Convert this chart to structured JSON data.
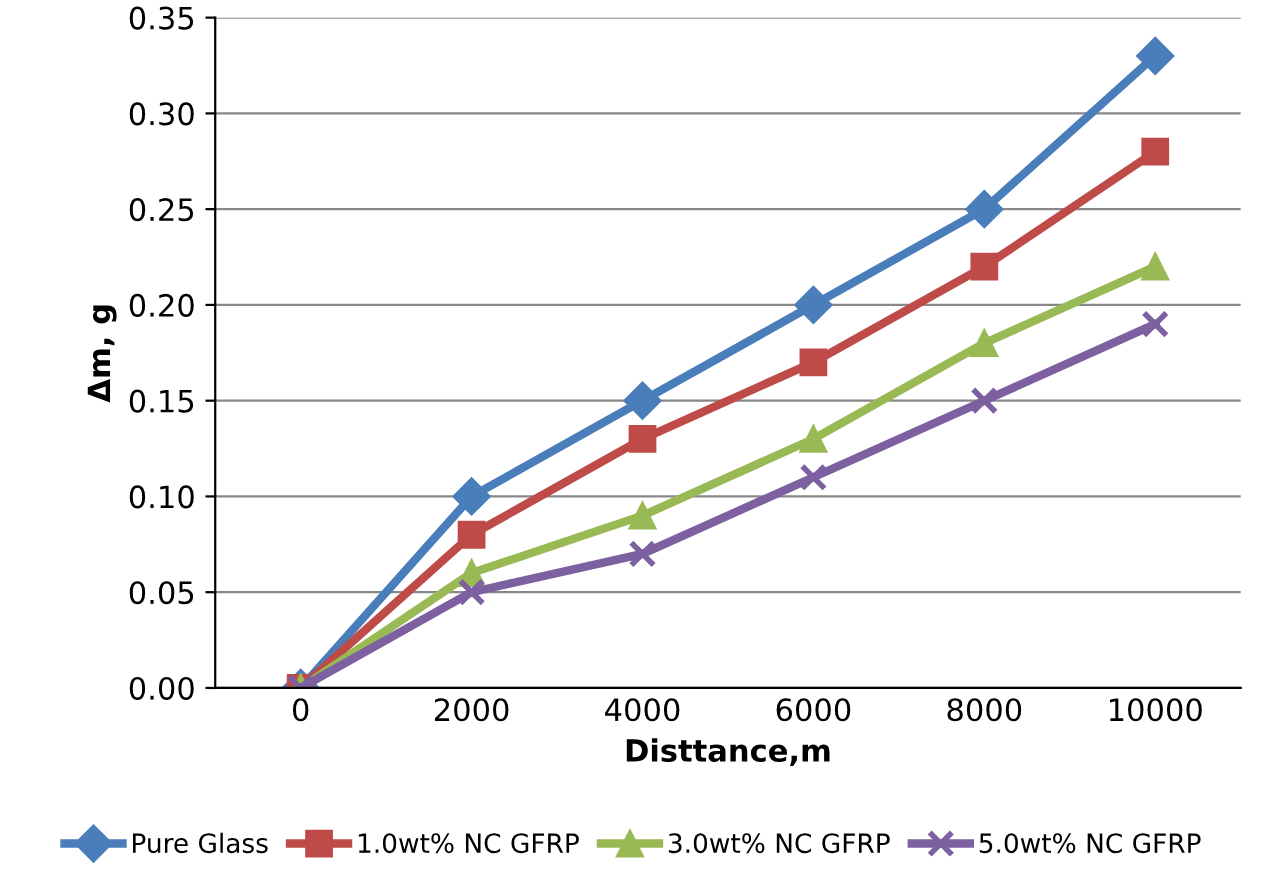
{
  "chart_data": {
    "type": "line",
    "xlabel": "Disttance,m",
    "ylabel": "Δm, g",
    "categories": [
      "0",
      "2000",
      "4000",
      "6000",
      "8000",
      "10000"
    ],
    "series": [
      {
        "name": "Pure Glass",
        "color": "#4a7ebb",
        "marker": "diamond",
        "values": [
          0,
          0.1,
          0.15,
          0.2,
          0.25,
          0.33
        ]
      },
      {
        "name": "1.0wt% NC GFRP",
        "color": "#be4b48",
        "marker": "square",
        "values": [
          0,
          0.08,
          0.13,
          0.17,
          0.22,
          0.28
        ]
      },
      {
        "name": "3.0wt% NC GFRP",
        "color": "#98b954",
        "marker": "triangle",
        "values": [
          0,
          0.06,
          0.09,
          0.13,
          0.18,
          0.22
        ]
      },
      {
        "name": "5.0wt% NC GFRP",
        "color": "#7d60a0",
        "marker": "cross",
        "values": [
          0,
          0.05,
          0.07,
          0.11,
          0.15,
          0.19
        ]
      }
    ],
    "ylim": [
      0,
      0.35
    ],
    "yticks": [
      {
        "value": 0,
        "label": "0.00"
      },
      {
        "value": 0.05,
        "label": "0.05"
      },
      {
        "value": 0.1,
        "label": "0.10"
      },
      {
        "value": 0.15,
        "label": "0.15"
      },
      {
        "value": 0.2,
        "label": "0.20"
      },
      {
        "value": 0.25,
        "label": "0.25"
      },
      {
        "value": 0.3,
        "label": "0.30"
      },
      {
        "value": 0.35,
        "label": "0.35"
      }
    ],
    "grid": "y",
    "legend": "bottom",
    "line_style": "solid"
  }
}
